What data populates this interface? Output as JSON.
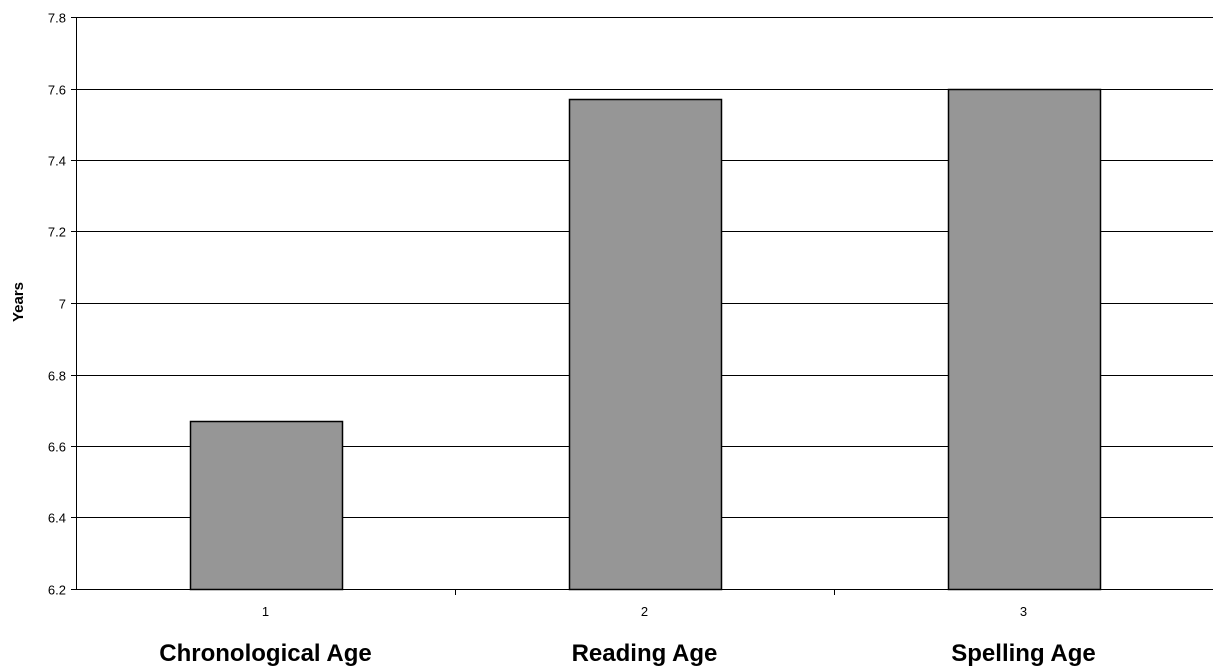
{
  "chart_data": {
    "type": "bar",
    "x_tick_labels": [
      "1",
      "2",
      "3"
    ],
    "categories": [
      "Chronological Age",
      "Reading Age",
      "Spelling Age"
    ],
    "values": [
      6.67,
      7.57,
      7.6
    ],
    "ylabel": "Years",
    "xlabel": "",
    "title": "",
    "ylim": [
      6.2,
      7.8
    ],
    "yticks": [
      6.2,
      6.4,
      6.6,
      6.8,
      7,
      7.2,
      7.4,
      7.6,
      7.8
    ],
    "ytick_labels": [
      "6.2",
      "6.4",
      "6.6",
      "6.8",
      "7",
      "7.2",
      "7.4",
      "7.6",
      "7.8"
    ],
    "grid": true,
    "legend": "none",
    "colors": {
      "bar_fill": "#969696",
      "bar_stroke": "#000000",
      "grid": "#000000",
      "background": "#ffffff"
    }
  }
}
